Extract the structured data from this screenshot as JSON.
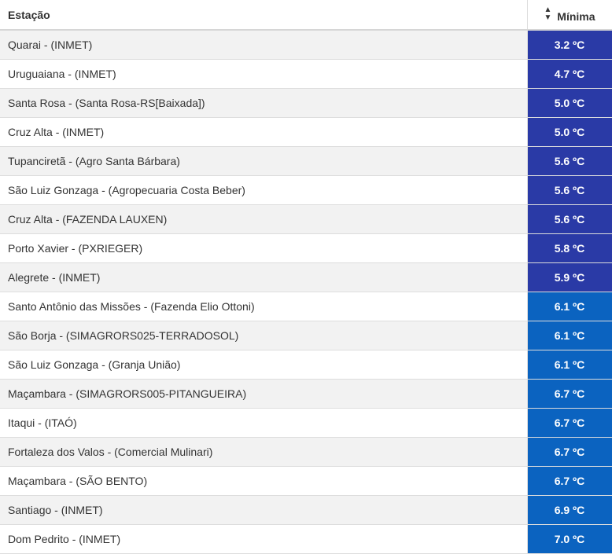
{
  "table": {
    "headers": {
      "station": "Estação",
      "min": "Mínima"
    },
    "sort_icon": "sort-icon",
    "rows": [
      {
        "station": "Quarai - (INMET)",
        "min": "3.2 ºC",
        "color": "#2a3aa6"
      },
      {
        "station": "Uruguaiana - (INMET)",
        "min": "4.7 ºC",
        "color": "#2a3aa6"
      },
      {
        "station": "Santa Rosa - (Santa Rosa-RS[Baixada])",
        "min": "5.0 ºC",
        "color": "#2a3aa6"
      },
      {
        "station": "Cruz Alta - (INMET)",
        "min": "5.0 ºC",
        "color": "#2a3aa6"
      },
      {
        "station": "Tupanciretã - (Agro Santa Bárbara)",
        "min": "5.6 ºC",
        "color": "#2a3aa6"
      },
      {
        "station": "São Luiz Gonzaga - (Agropecuaria Costa Beber)",
        "min": "5.6 ºC",
        "color": "#2a3aa6"
      },
      {
        "station": "Cruz Alta - (FAZENDA LAUXEN)",
        "min": "5.6 ºC",
        "color": "#2a3aa6"
      },
      {
        "station": "Porto Xavier - (PXRIEGER)",
        "min": "5.8 ºC",
        "color": "#2a3aa6"
      },
      {
        "station": "Alegrete - (INMET)",
        "min": "5.9 ºC",
        "color": "#2a3aa6"
      },
      {
        "station": "Santo Antônio das Missões - (Fazenda Elio Ottoni)",
        "min": "6.1 ºC",
        "color": "#0b63c0"
      },
      {
        "station": "São Borja - (SIMAGRORS025-TERRADOSOL)",
        "min": "6.1 ºC",
        "color": "#0b63c0"
      },
      {
        "station": "São Luiz Gonzaga - (Granja União)",
        "min": "6.1 ºC",
        "color": "#0b63c0"
      },
      {
        "station": "Maçambara - (SIMAGRORS005-PITANGUEIRA)",
        "min": "6.7 ºC",
        "color": "#0b63c0"
      },
      {
        "station": "Itaqui - (ITAÓ)",
        "min": "6.7 ºC",
        "color": "#0b63c0"
      },
      {
        "station": "Fortaleza dos Valos - (Comercial Mulinari)",
        "min": "6.7 ºC",
        "color": "#0b63c0"
      },
      {
        "station": "Maçambara - (SÃO BENTO)",
        "min": "6.7 ºC",
        "color": "#0b63c0"
      },
      {
        "station": "Santiago - (INMET)",
        "min": "6.9 ºC",
        "color": "#0b63c0"
      },
      {
        "station": "Dom Pedrito - (INMET)",
        "min": "7.0 ºC",
        "color": "#0b63c0"
      }
    ]
  }
}
